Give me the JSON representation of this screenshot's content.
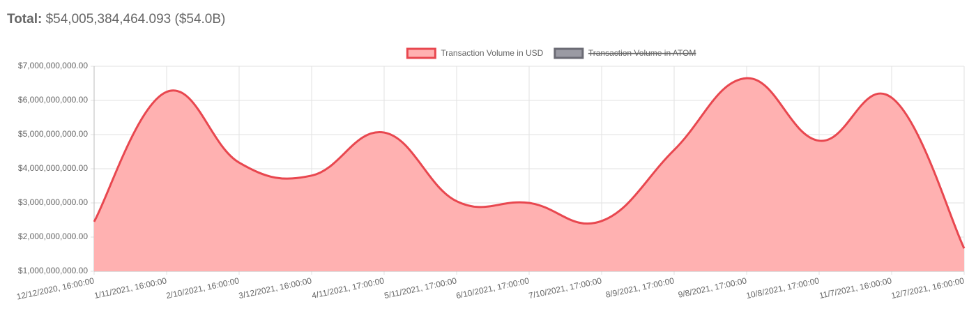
{
  "header": {
    "label": "Total:",
    "value": "$54,005,384,464.093 ($54.0B)"
  },
  "chart_data": {
    "type": "line",
    "categories": [
      "12/12/2020, 16:00:00",
      "1/11/2021, 16:00:00",
      "2/10/2021, 16:00:00",
      "3/12/2021, 16:00:00",
      "4/11/2021, 17:00:00",
      "5/11/2021, 17:00:00",
      "6/10/2021, 17:00:00",
      "7/10/2021, 17:00:00",
      "8/9/2021, 17:00:00",
      "9/8/2021, 17:00:00",
      "10/8/2021, 17:00:00",
      "11/7/2021, 16:00:00",
      "12/7/2021, 16:00:00"
    ],
    "series": [
      {
        "name": "Transaction Volume in USD",
        "color": "#e8474f",
        "fill": "#ffb1b1",
        "values": [
          2450000000,
          6250000000,
          4180000000,
          3800000000,
          5060000000,
          3050000000,
          3000000000,
          2470000000,
          4550000000,
          6650000000,
          4820000000,
          6080000000,
          1670000000
        ]
      },
      {
        "name": "Transaction Volume in ATOM",
        "color": "#6b6b74",
        "fill": "#9a9aa3",
        "hidden": true
      }
    ],
    "ylim": [
      1000000000,
      7000000000
    ],
    "yticks": [
      {
        "value": 1000000000,
        "label": "$1,000,000,000.00"
      },
      {
        "value": 2000000000,
        "label": "$2,000,000,000.00"
      },
      {
        "value": 3000000000,
        "label": "$3,000,000,000.00"
      },
      {
        "value": 4000000000,
        "label": "$4,000,000,000.00"
      },
      {
        "value": 5000000000,
        "label": "$5,000,000,000.00"
      },
      {
        "value": 6000000000,
        "label": "$6,000,000,000.00"
      },
      {
        "value": 7000000000,
        "label": "$7,000,000,000.00"
      }
    ],
    "grid": true,
    "legend": "top"
  }
}
